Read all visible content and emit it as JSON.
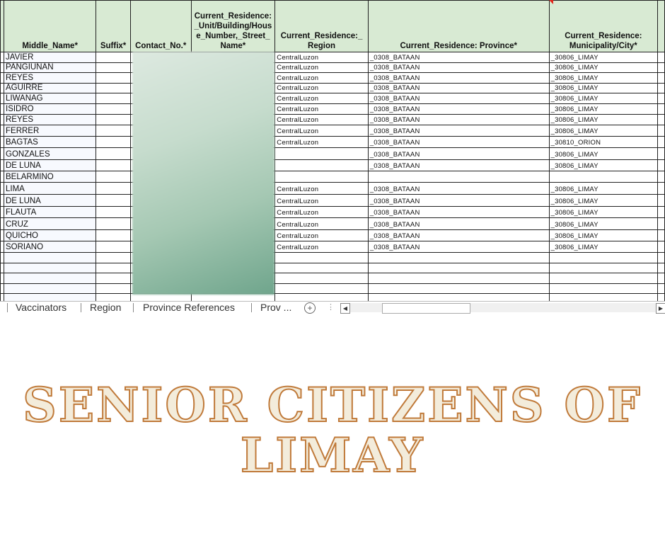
{
  "sheet": {
    "headers": [
      "Middle_Name*",
      "Suffix*",
      "Contact_No.*",
      "Current_Residence: _Unit/Building/Hous e_Number,_Street_ Name*",
      "Current_Residence:_ Region",
      "Current_Residence: Province*",
      "Current_Residence: Municipality/City*"
    ],
    "rows": [
      [
        "JAVIER",
        "",
        "",
        "",
        "CentralLuzon",
        "_0308_BATAAN",
        "_30806_LIMAY"
      ],
      [
        "PANGIUNAN",
        "",
        "",
        "",
        "CentralLuzon",
        "_0308_BATAAN",
        "_30806_LIMAY"
      ],
      [
        "REYES",
        "",
        "",
        "",
        "CentralLuzon",
        "_0308_BATAAN",
        "_30806_LIMAY"
      ],
      [
        "AGUIRRE",
        "",
        "",
        "",
        "CentralLuzon",
        "_0308_BATAAN",
        "_30806_LIMAY"
      ],
      [
        "LIWANAG",
        "",
        "",
        "",
        "CentralLuzon",
        "_0308_BATAAN",
        "_30806_LIMAY"
      ],
      [
        "ISIDRO",
        "",
        "",
        "",
        "CentralLuzon",
        "_0308_BATAAN",
        "_30806_LIMAY"
      ],
      [
        "REYES",
        "",
        "",
        "",
        "CentralLuzon",
        "_0308_BATAAN",
        "_30806_LIMAY"
      ],
      [
        "FERRER",
        "",
        "",
        "",
        "CentralLuzon",
        "_0308_BATAAN",
        "_30806_LIMAY"
      ],
      [
        "BAGTAS",
        "",
        "",
        "",
        "CentralLuzon",
        "_0308_BATAAN",
        "_30810_ORION"
      ],
      [
        "GONZALES",
        "",
        "",
        "",
        "",
        "_0308_BATAAN",
        "_30806_LIMAY"
      ],
      [
        "DE LUNA",
        "",
        "",
        "",
        "",
        "_0308_BATAAN",
        "_30806_LIMAY"
      ],
      [
        "BELARMINO",
        "",
        "",
        "",
        "",
        "",
        ""
      ],
      [
        "LIMA",
        "",
        "",
        "",
        "CentralLuzon",
        "_0308_BATAAN",
        "_30806_LIMAY"
      ],
      [
        "DE LUNA",
        "",
        "",
        "",
        "CentralLuzon",
        "_0308_BATAAN",
        "_30806_LIMAY"
      ],
      [
        "FLAUTA",
        "",
        "",
        "",
        "CentralLuzon",
        "_0308_BATAAN",
        "_30806_LIMAY"
      ],
      [
        "CRUZ",
        "",
        "",
        "",
        "CentralLuzon",
        "_0308_BATAAN",
        "_30806_LIMAY"
      ],
      [
        "QUICHO",
        "",
        "",
        "",
        "CentralLuzon",
        "_0308_BATAAN",
        "_30806_LIMAY"
      ],
      [
        "SORIANO",
        "",
        "",
        "",
        "CentralLuzon",
        "_0308_BATAAN",
        "_30806_LIMAY"
      ],
      [
        "",
        "",
        "",
        "",
        "",
        "",
        ""
      ],
      [
        "",
        "",
        "",
        "",
        "",
        "",
        ""
      ],
      [
        "",
        "",
        "",
        "",
        "",
        "",
        ""
      ],
      [
        "",
        "",
        "",
        "",
        "",
        "",
        ""
      ],
      [
        "",
        "",
        "",
        "",
        "",
        "",
        ""
      ]
    ],
    "header_color": "#d8ead3"
  },
  "sheet_tabs": [
    "Vaccinators",
    "Region",
    "Province References",
    "Prov ..."
  ],
  "icons": {
    "add_sheet": "plus-circle-icon",
    "scroll_left": "caret-left-icon",
    "scroll_right": "caret-right-icon"
  },
  "title": {
    "line1": "SENIOR CITIZENS OF",
    "line2": "LIMAY",
    "fill_color": "#f3ecdb",
    "stroke_color": "#c07a3a"
  }
}
